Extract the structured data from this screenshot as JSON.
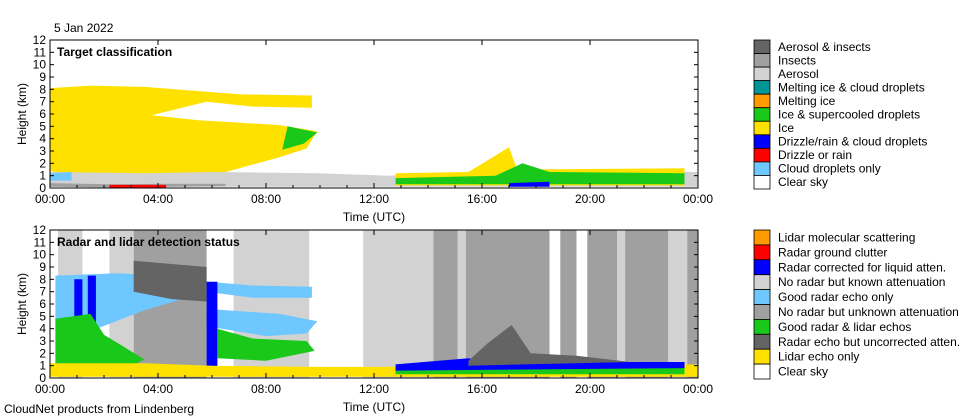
{
  "date": "5 Jan 2022",
  "footer": "CloudNet products from Lindenberg",
  "chart_data": [
    {
      "type": "heatmap",
      "title": "Target classification",
      "xlabel": "Time (UTC)",
      "ylabel": "Height (km)",
      "xticks": [
        "00:00",
        "04:00",
        "08:00",
        "12:00",
        "16:00",
        "20:00",
        "00:00"
      ],
      "xlim": [
        0,
        24
      ],
      "ylim": [
        0,
        12
      ],
      "yticks": [
        0,
        1,
        2,
        3,
        4,
        5,
        6,
        7,
        8,
        9,
        10,
        11,
        12
      ],
      "legend_position": "right",
      "legend": [
        {
          "label": "Aerosol & insects",
          "color": "#646464"
        },
        {
          "label": "Insects",
          "color": "#a0a0a0"
        },
        {
          "label": "Aerosol",
          "color": "#d2d2d2"
        },
        {
          "label": "Melting ice & cloud droplets",
          "color": "#009696"
        },
        {
          "label": "Melting ice",
          "color": "#ff9b00"
        },
        {
          "label": "Ice & supercooled droplets",
          "color": "#19c819"
        },
        {
          "label": "Ice",
          "color": "#ffe100"
        },
        {
          "label": "Drizzle/rain & cloud droplets",
          "color": "#0000ff"
        },
        {
          "label": "Drizzle or rain",
          "color": "#ff0000"
        },
        {
          "label": "Cloud droplets only",
          "color": "#6ec8ff"
        },
        {
          "label": "Clear sky",
          "color": "#ffffff"
        }
      ],
      "regions": [
        {
          "class": "Ice",
          "points": [
            [
              0,
              8.1
            ],
            [
              1.5,
              8.3
            ],
            [
              3.5,
              8.2
            ],
            [
              5.8,
              7.8
            ],
            [
              7,
              7.6
            ],
            [
              9.7,
              7.5
            ],
            [
              9.7,
              6.5
            ],
            [
              7.5,
              6.6
            ],
            [
              5.8,
              7.0
            ],
            [
              3.0,
              5.5
            ],
            [
              0.5,
              3.0
            ],
            [
              0,
              1.4
            ]
          ]
        },
        {
          "class": "Ice",
          "points": [
            [
              0,
              6
            ],
            [
              2.5,
              6.2
            ],
            [
              5.5,
              5.5
            ],
            [
              8.5,
              5.1
            ],
            [
              9.9,
              4.6
            ],
            [
              9.5,
              3.2
            ],
            [
              8.5,
              2.5
            ],
            [
              6.5,
              1.3
            ],
            [
              6,
              0.3
            ],
            [
              1.5,
              0.3
            ],
            [
              0,
              1.4
            ]
          ]
        },
        {
          "class": "Ice & supercooled droplets",
          "points": [
            [
              8.8,
              5.0
            ],
            [
              9.9,
              4.5
            ],
            [
              9.4,
              3.6
            ],
            [
              8.6,
              3.1
            ]
          ]
        },
        {
          "class": "Aerosol",
          "points": [
            [
              0,
              1.3
            ],
            [
              3.5,
              1.2
            ],
            [
              6.0,
              1.3
            ],
            [
              9.9,
              1.2
            ],
            [
              12.5,
              1.0
            ],
            [
              18,
              1.5
            ],
            [
              24,
              1.3
            ],
            [
              24,
              0.1
            ],
            [
              0,
              0.1
            ]
          ]
        },
        {
          "class": "Insects",
          "points": [
            [
              0,
              0.1
            ],
            [
              2.2,
              0.05
            ],
            [
              4.5,
              0.1
            ],
            [
              6.5,
              0.15
            ],
            [
              6.5,
              0.35
            ],
            [
              4.5,
              0.35
            ],
            [
              2.2,
              0.3
            ],
            [
              0,
              0.4
            ]
          ]
        },
        {
          "class": "Drizzle or rain",
          "points": [
            [
              2.2,
              0
            ],
            [
              4.3,
              0
            ],
            [
              4.3,
              0.25
            ],
            [
              2.2,
              0.25
            ]
          ]
        },
        {
          "class": "Cloud droplets only",
          "points": [
            [
              0,
              1.2
            ],
            [
              0.8,
              1.3
            ],
            [
              0.8,
              0.6
            ],
            [
              0,
              0.6
            ]
          ]
        },
        {
          "class": "Ice",
          "points": [
            [
              12.8,
              1.2
            ],
            [
              15.5,
              1.3
            ],
            [
              17.0,
              3.3
            ],
            [
              17.3,
              1.5
            ],
            [
              23.5,
              1.6
            ],
            [
              23.5,
              0.2
            ],
            [
              12.8,
              0.2
            ]
          ]
        },
        {
          "class": "Ice & supercooled droplets",
          "points": [
            [
              12.8,
              0.8
            ],
            [
              16.5,
              1.0
            ],
            [
              17.5,
              2.0
            ],
            [
              18.5,
              1.3
            ],
            [
              23.5,
              1.2
            ],
            [
              23.5,
              0.3
            ],
            [
              12.8,
              0.3
            ]
          ]
        },
        {
          "class": "Drizzle/rain & cloud droplets",
          "points": [
            [
              17.0,
              0.4
            ],
            [
              18.5,
              0.5
            ],
            [
              18.5,
              0.1
            ],
            [
              17.0,
              0.1
            ]
          ]
        }
      ]
    },
    {
      "type": "heatmap",
      "title": "Radar and lidar detection status",
      "xlabel": "Time (UTC)",
      "ylabel": "Height (km)",
      "xticks": [
        "00:00",
        "04:00",
        "08:00",
        "12:00",
        "16:00",
        "20:00",
        "00:00"
      ],
      "xlim": [
        0,
        24
      ],
      "ylim": [
        0,
        12
      ],
      "yticks": [
        0,
        1,
        2,
        3,
        4,
        5,
        6,
        7,
        8,
        9,
        10,
        11,
        12
      ],
      "legend_position": "right",
      "legend": [
        {
          "label": "Lidar molecular scattering",
          "color": "#ff9b00"
        },
        {
          "label": "Radar ground clutter",
          "color": "#ff0000"
        },
        {
          "label": "Radar corrected for liquid atten.",
          "color": "#0000ff"
        },
        {
          "label": "No radar but known attenuation",
          "color": "#d2d2d2"
        },
        {
          "label": "Good radar echo only",
          "color": "#6ec8ff"
        },
        {
          "label": "No radar but unknown attenuation",
          "color": "#a0a0a0"
        },
        {
          "label": "Good radar & lidar echos",
          "color": "#19c819"
        },
        {
          "label": "Radar echo but uncorrected atten.",
          "color": "#646464"
        },
        {
          "label": "Lidar echo only",
          "color": "#ffe100"
        },
        {
          "label": "Clear sky",
          "color": "#ffffff"
        }
      ],
      "bands": [
        {
          "class": "No radar but known attenuation",
          "x0": 0.3,
          "x1": 1.2
        },
        {
          "class": "No radar but known attenuation",
          "x0": 2.2,
          "x1": 3.1
        },
        {
          "class": "No radar but unknown attenuation",
          "x0": 3.1,
          "x1": 5.8
        },
        {
          "class": "No radar but known attenuation",
          "x0": 6.8,
          "x1": 9.6
        },
        {
          "class": "No radar but known attenuation",
          "x0": 11.6,
          "x1": 14.2
        },
        {
          "class": "No radar but unknown attenuation",
          "x0": 14.2,
          "x1": 15.1
        },
        {
          "class": "No radar but known attenuation",
          "x0": 15.1,
          "x1": 15.4
        },
        {
          "class": "No radar but unknown attenuation",
          "x0": 15.4,
          "x1": 18.5
        },
        {
          "class": "No radar but unknown attenuation",
          "x0": 18.9,
          "x1": 19.5
        },
        {
          "class": "No radar but unknown attenuation",
          "x0": 19.9,
          "x1": 21.0
        },
        {
          "class": "No radar but known attenuation",
          "x0": 21.0,
          "x1": 21.3
        },
        {
          "class": "No radar but unknown attenuation",
          "x0": 21.3,
          "x1": 22.9
        },
        {
          "class": "No radar but known attenuation",
          "x0": 22.9,
          "x1": 23.6
        },
        {
          "class": "No radar but unknown attenuation",
          "x0": 23.6,
          "x1": 24.0
        }
      ],
      "regions": [
        {
          "class": "Good radar echo only",
          "points": [
            [
              0.2,
              8.3
            ],
            [
              2.5,
              8.5
            ],
            [
              4.0,
              8.3
            ],
            [
              5.8,
              7.8
            ],
            [
              7.5,
              7.5
            ],
            [
              9.7,
              7.4
            ],
            [
              9.7,
              6.5
            ],
            [
              7.5,
              6.5
            ],
            [
              5.8,
              7.0
            ],
            [
              3.5,
              5.5
            ],
            [
              1.5,
              3.8
            ],
            [
              0.2,
              4.5
            ]
          ]
        },
        {
          "class": "Good radar echo only",
          "points": [
            [
              5.8,
              5.6
            ],
            [
              8.5,
              5.2
            ],
            [
              9.9,
              4.6
            ],
            [
              9.5,
              3.6
            ],
            [
              8.0,
              3.4
            ],
            [
              5.8,
              4.2
            ]
          ]
        },
        {
          "class": "Radar echo but uncorrected atten.",
          "points": [
            [
              3.1,
              9.5
            ],
            [
              5.8,
              9.0
            ],
            [
              5.8,
              6.2
            ],
            [
              4.5,
              6.4
            ],
            [
              3.1,
              7.0
            ]
          ]
        },
        {
          "class": "Radar corrected for liquid atten.",
          "points": [
            [
              1.4,
              8.3
            ],
            [
              1.7,
              8.3
            ],
            [
              1.7,
              0.3
            ],
            [
              1.4,
              0.3
            ]
          ]
        },
        {
          "class": "Radar corrected for liquid atten.",
          "points": [
            [
              5.8,
              7.8
            ],
            [
              6.2,
              7.8
            ],
            [
              6.2,
              0.3
            ],
            [
              5.8,
              0.3
            ]
          ]
        },
        {
          "class": "Radar corrected for liquid atten.",
          "points": [
            [
              0.9,
              8.0
            ],
            [
              1.2,
              8.0
            ],
            [
              1.2,
              3.0
            ],
            [
              0.9,
              3.0
            ]
          ]
        },
        {
          "class": "Good radar & lidar echos",
          "points": [
            [
              0.2,
              4.8
            ],
            [
              1.5,
              5.2
            ],
            [
              2.0,
              3.5
            ],
            [
              3.5,
              1.5
            ],
            [
              2.5,
              0.5
            ],
            [
              0.2,
              0.5
            ]
          ]
        },
        {
          "class": "Good radar & lidar echos",
          "points": [
            [
              6.2,
              4.0
            ],
            [
              7.5,
              3.2
            ],
            [
              9.5,
              3.0
            ],
            [
              9.8,
              2.2
            ],
            [
              8.0,
              1.4
            ],
            [
              6.2,
              1.6
            ]
          ]
        },
        {
          "class": "Lidar echo only",
          "points": [
            [
              0,
              1.2
            ],
            [
              3.5,
              1.2
            ],
            [
              6.0,
              1.0
            ],
            [
              9.8,
              0.9
            ],
            [
              12.5,
              0.9
            ],
            [
              24,
              1.1
            ],
            [
              24,
              0.1
            ],
            [
              0,
              0.1
            ]
          ]
        },
        {
          "class": "Radar corrected for liquid atten.",
          "points": [
            [
              12.8,
              1.1
            ],
            [
              15.5,
              1.6
            ],
            [
              16.5,
              1.2
            ],
            [
              17.5,
              1.5
            ],
            [
              18.5,
              1.3
            ],
            [
              23.5,
              1.3
            ],
            [
              23.5,
              0.5
            ],
            [
              12.8,
              0.5
            ]
          ]
        },
        {
          "class": "Radar echo but uncorrected atten.",
          "points": [
            [
              15.5,
              1.4
            ],
            [
              16.2,
              2.8
            ],
            [
              17.1,
              4.3
            ],
            [
              17.8,
              2.0
            ],
            [
              19.5,
              1.8
            ],
            [
              21.5,
              1.3
            ],
            [
              15.5,
              1.0
            ]
          ]
        },
        {
          "class": "Good radar & lidar echos",
          "points": [
            [
              12.8,
              0.6
            ],
            [
              23.5,
              0.8
            ],
            [
              23.5,
              0.3
            ],
            [
              12.8,
              0.3
            ]
          ]
        }
      ]
    }
  ]
}
